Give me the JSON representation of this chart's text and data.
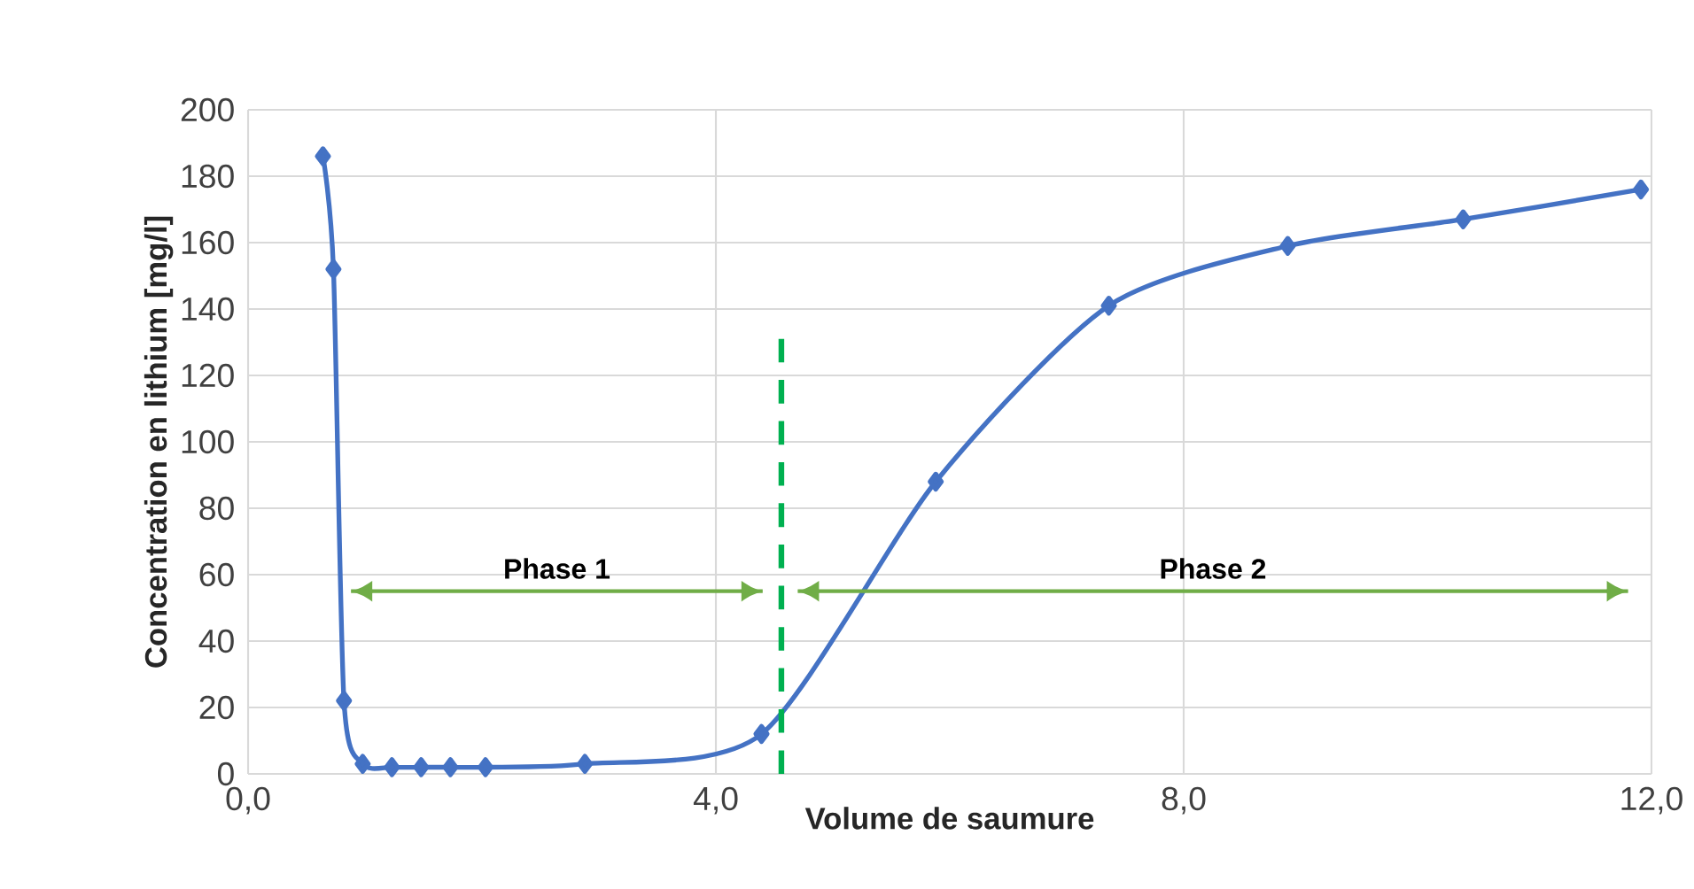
{
  "chart_data": {
    "type": "line",
    "xlabel": "Volume de saumure",
    "ylabel": "Concentration en lithium  [mg/l]",
    "series": [
      {
        "color": "#4472c4",
        "marker": "diamond",
        "line_style": "solid",
        "x": [
          0.64,
          0.73,
          0.82,
          0.98,
          1.23,
          1.48,
          1.73,
          2.03,
          2.88,
          4.39,
          5.88,
          7.36,
          8.89,
          10.39,
          11.91
        ],
        "values": [
          186,
          152,
          22,
          3,
          2,
          2,
          2,
          2,
          3,
          12,
          88,
          141,
          159,
          167,
          176
        ]
      },
      {
        "color": "#00b050",
        "marker": "none",
        "line_style": "dashed",
        "x": [
          4.56,
          4.56
        ],
        "values": [
          0,
          131
        ]
      },
      {
        "color": "#70ad47",
        "marker": "none",
        "line_style": "solid",
        "x": [
          0.88,
          4.4
        ],
        "values": [
          55,
          55
        ]
      },
      {
        "color": "#70ad47",
        "marker": "none",
        "line_style": "solid",
        "x": [
          4.7,
          11.8
        ],
        "values": [
          55,
          55
        ]
      }
    ],
    "annotations": [
      "Phase 1",
      "Phase 2"
    ],
    "xlim": [
      0,
      12
    ],
    "ylim": [
      0,
      200
    ],
    "xticks": [
      {
        "value": 0,
        "label": "0,0"
      },
      {
        "value": 4,
        "label": "4,0"
      },
      {
        "value": 8,
        "label": "8,0"
      },
      {
        "value": 12,
        "label": "12,0"
      }
    ],
    "yticks": [
      0,
      20,
      40,
      60,
      80,
      100,
      120,
      140,
      160,
      180,
      200
    ],
    "grid": true
  }
}
